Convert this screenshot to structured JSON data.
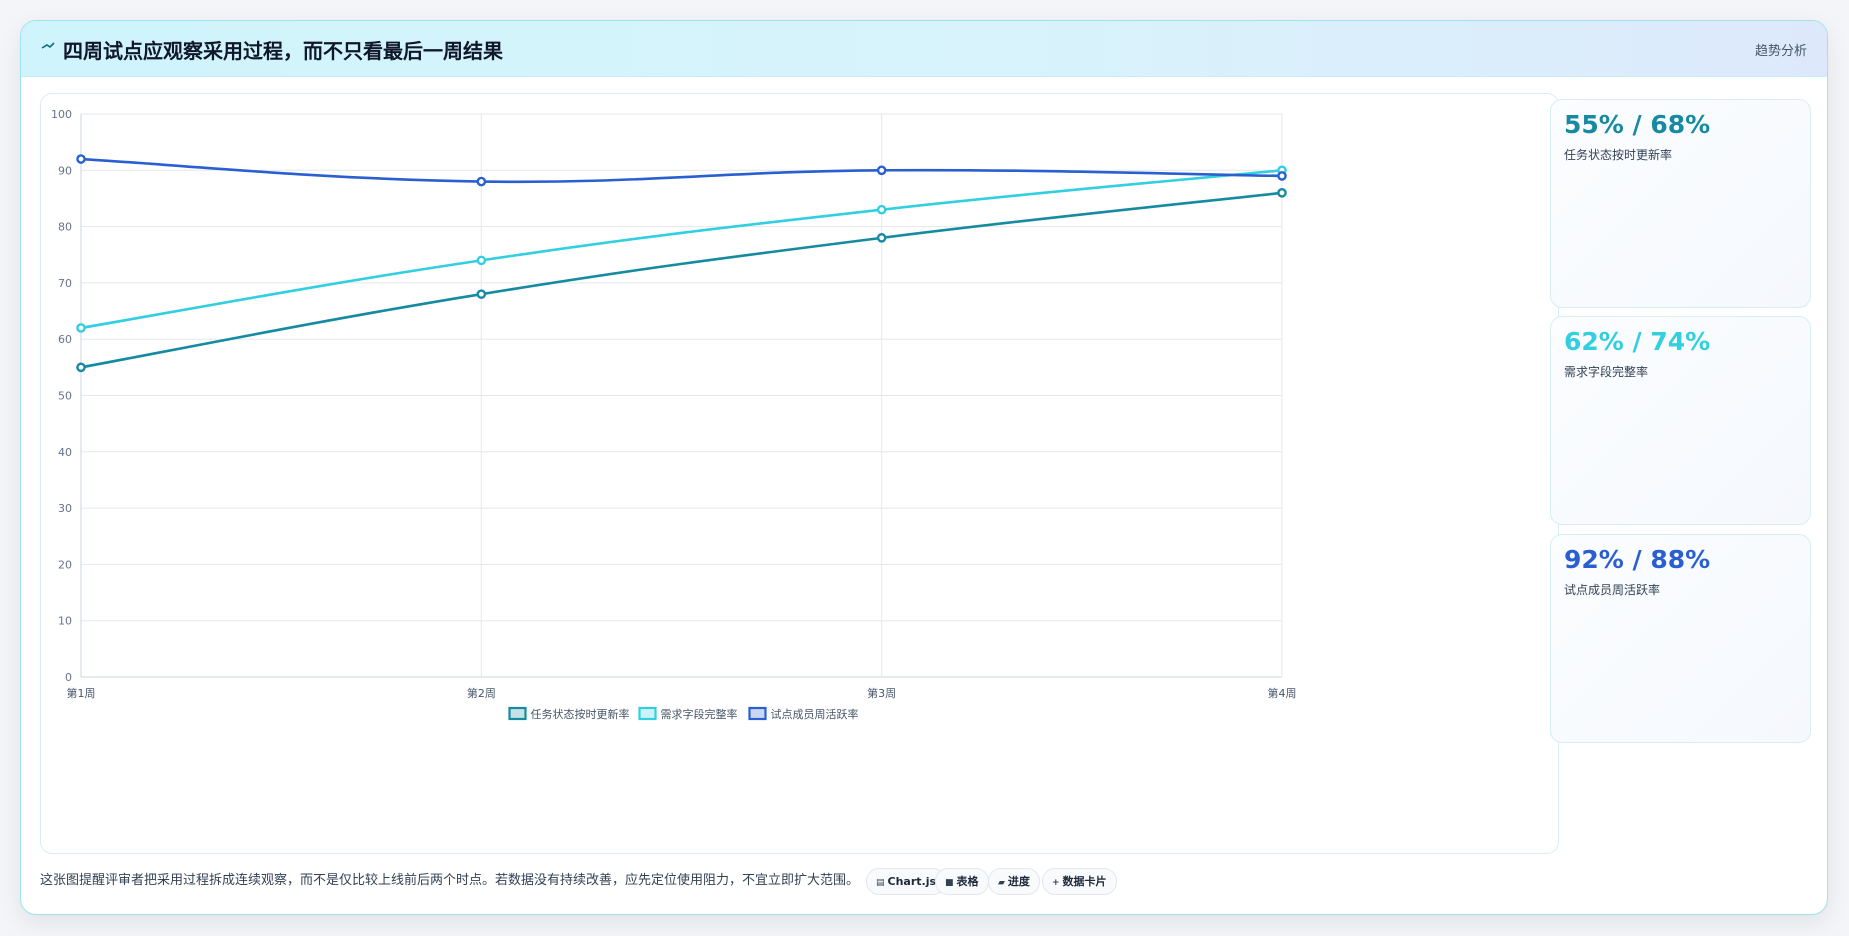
{
  "header": {
    "title": "四周试点应观察采用过程，而不只看最后一周结果",
    "tag": "趋势分析",
    "icon": "trend-line-icon"
  },
  "colors": {
    "series1": "#168aa0",
    "series2": "#31cfe0",
    "series3": "#2a5fd1"
  },
  "chart_data": {
    "type": "line",
    "categories": [
      "第1周",
      "第2周",
      "第3周",
      "第4周"
    ],
    "series": [
      {
        "name": "任务状态按时更新率",
        "values": [
          55,
          68,
          78,
          86
        ]
      },
      {
        "name": "需求字段完整率",
        "values": [
          62,
          74,
          83,
          90
        ]
      },
      {
        "name": "试点成员周活跃率",
        "values": [
          92,
          88,
          90,
          89
        ]
      }
    ],
    "ylim": [
      0,
      100
    ],
    "yticks": [
      "0",
      "10",
      "20",
      "30",
      "40",
      "50",
      "60",
      "70",
      "80",
      "90",
      "100"
    ],
    "grid": true,
    "legend": "bottom-center"
  },
  "stats": [
    {
      "value": "55% / 68%",
      "label": "任务状态按时更新率"
    },
    {
      "value": "62% / 74%",
      "label": "需求字段完整率"
    },
    {
      "value": "92% / 88%",
      "label": "试点成员周活跃率"
    }
  ],
  "footer": {
    "note": "这张图提醒评审者把采用过程拆成连续观察，而不是仅比较上线前后两个时点。若数据没有持续改善，应先定位使用阻力，不宜立即扩大范围。",
    "pills": [
      {
        "label": "Chart.js",
        "icon": "chart-icon"
      },
      {
        "label": "表格",
        "icon": "table-icon"
      },
      {
        "label": "进度",
        "icon": "progress-icon"
      },
      {
        "label": "数据卡片",
        "icon": "card-icon"
      }
    ]
  }
}
